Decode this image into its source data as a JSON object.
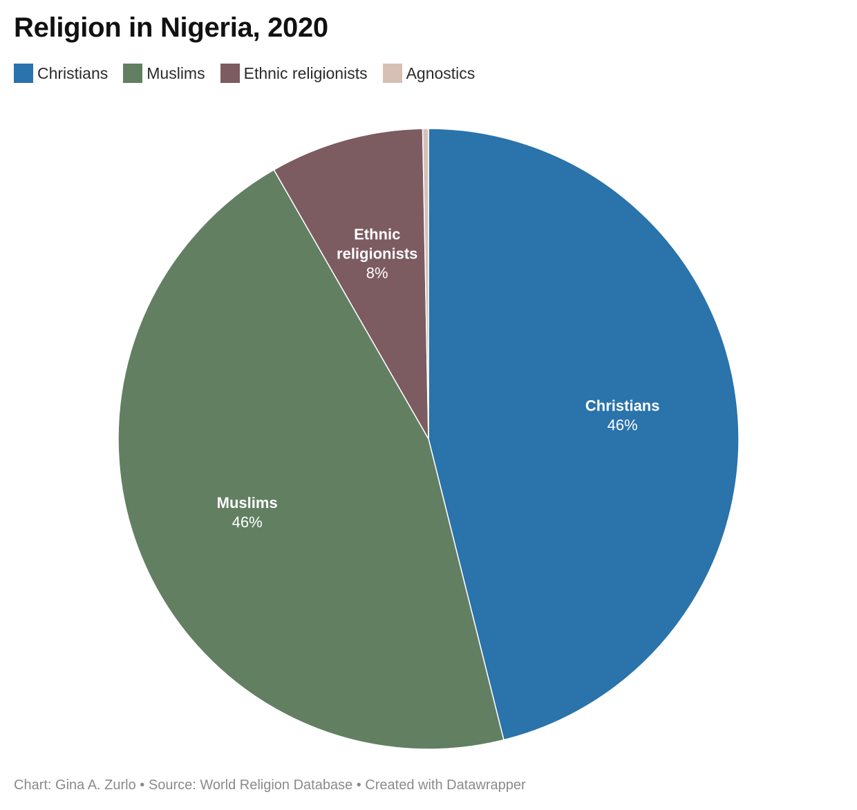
{
  "title": "Religion in Nigeria, 2020",
  "footer": "Chart: Gina A. Zurlo • Source: World Religion Database • Created with Datawrapper",
  "chart_data": {
    "type": "pie",
    "title": "Religion in Nigeria, 2020",
    "legend_position": "top",
    "slices": [
      {
        "name": "Christians",
        "value": 46.1,
        "color": "#2a73ab",
        "label_lines": [
          "Christians"
        ],
        "pct_label": "46%"
      },
      {
        "name": "Muslims",
        "value": 45.6,
        "color": "#627f62",
        "label_lines": [
          "Muslims"
        ],
        "pct_label": "46%"
      },
      {
        "name": "Ethnic religionists",
        "value": 8.0,
        "color": "#7c5b61",
        "label_lines": [
          "Ethnic",
          "religionists"
        ],
        "pct_label": "8%"
      },
      {
        "name": "Agnostics",
        "value": 0.3,
        "color": "#d6c0b6",
        "label_lines": [],
        "pct_label": ""
      }
    ]
  }
}
